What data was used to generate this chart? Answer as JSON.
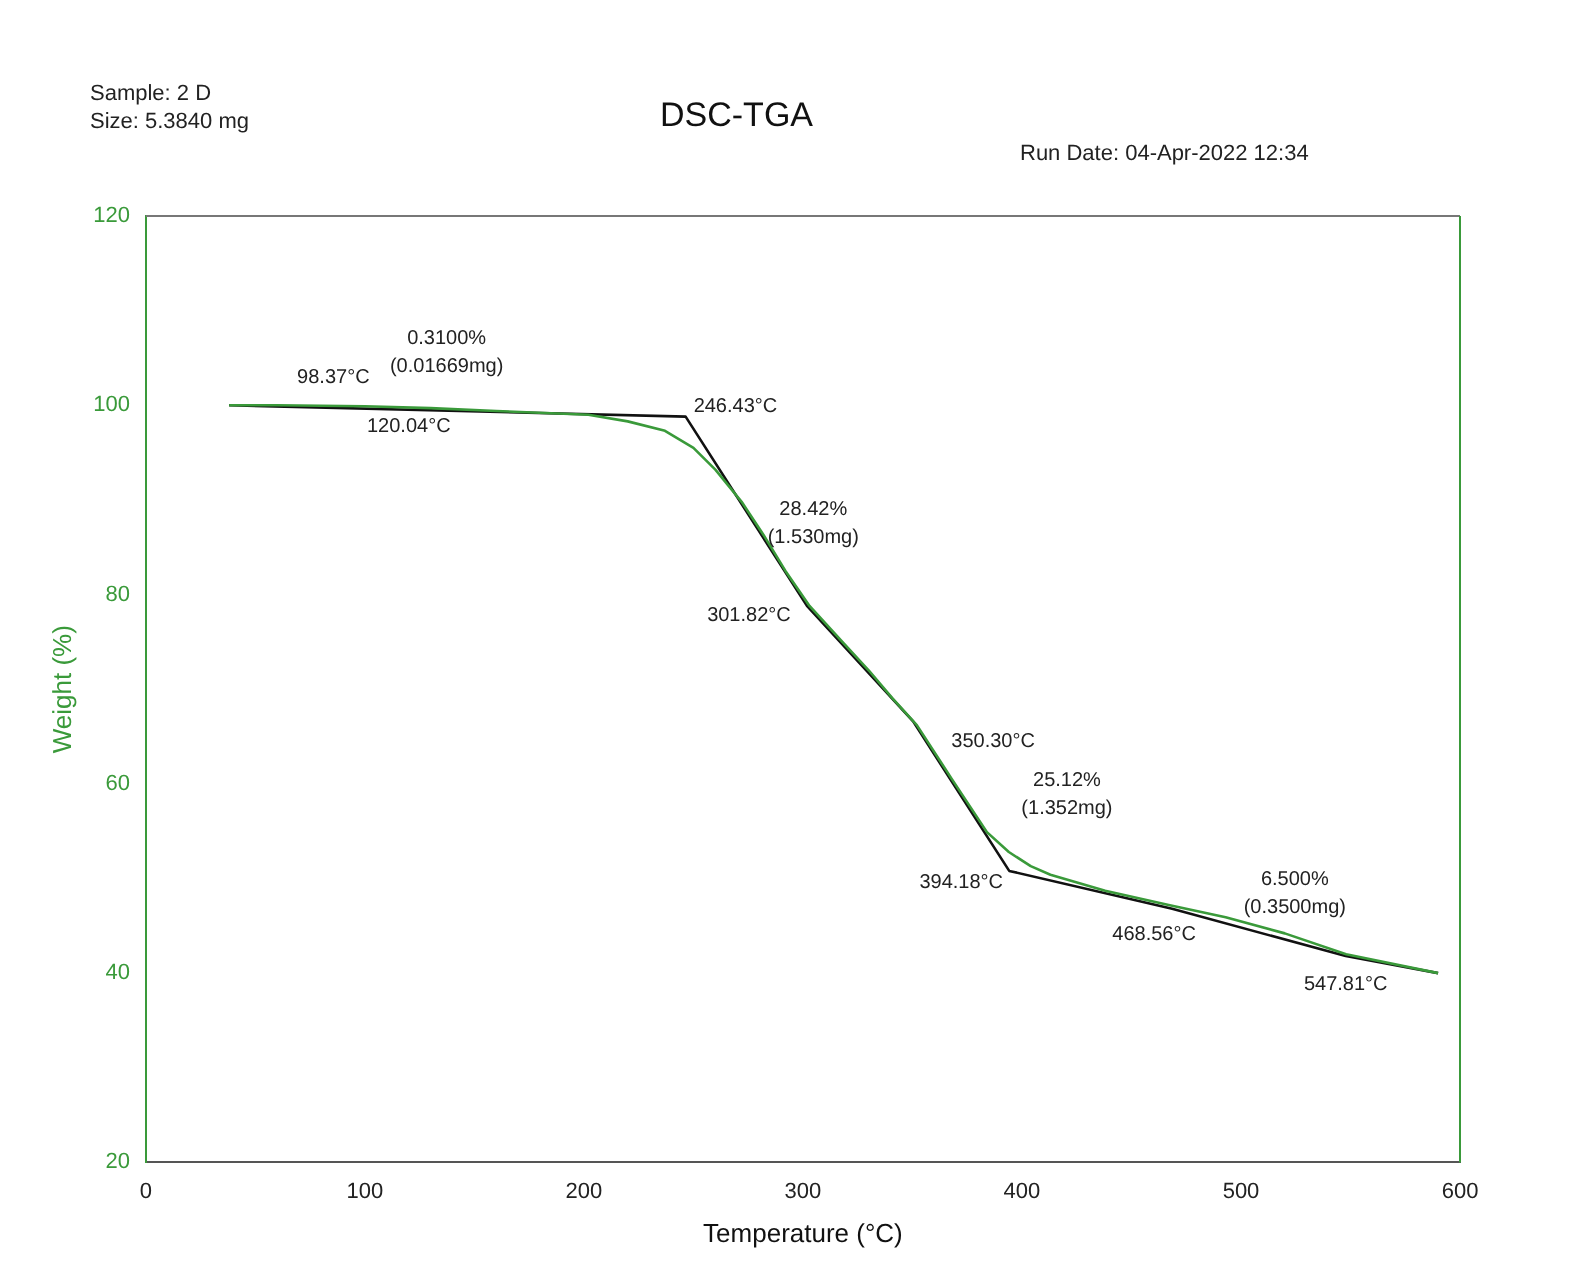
{
  "chart_data": {
    "type": "line",
    "title": "DSC-TGA",
    "xlabel": "Temperature (°C)",
    "ylabel": "Weight (%)",
    "xlim": [
      0,
      600
    ],
    "xticks": [
      0,
      100,
      200,
      300,
      400,
      500,
      600
    ],
    "ylim": [
      20,
      120
    ],
    "yticks": [
      20,
      40,
      60,
      80,
      100,
      120
    ],
    "grid": false,
    "legend": false,
    "marker": "none",
    "line_style": "solid",
    "series": [
      {
        "color": "#3a9a3a",
        "x": [
          38,
          60,
          100,
          130,
          160,
          202,
          220,
          237,
          250,
          260,
          272,
          282,
          292,
          303,
          318,
          330,
          341,
          352,
          368,
          384,
          394,
          404,
          413,
          438,
          467,
          493,
          520,
          548,
          590
        ],
        "values": [
          100,
          100,
          99.9,
          99.7,
          99.4,
          99.0,
          98.3,
          97.3,
          95.5,
          93.2,
          89.8,
          86.3,
          82.5,
          78.8,
          75.0,
          72,
          69,
          66.2,
          60.5,
          54.9,
          52.8,
          51.3,
          50.4,
          48.7,
          47.2,
          45.9,
          44.2,
          42,
          40
        ]
      },
      {
        "color": "#111111",
        "x": [
          38,
          246.43,
          301.82,
          350.3,
          394.18,
          468.56,
          547.81,
          590
        ],
        "values": [
          100,
          98.8,
          78.8,
          66.6,
          50.8,
          46.8,
          41.8,
          40
        ]
      }
    ],
    "annotations": [
      "Sample: 2 D",
      "Size:  5.3840 mg",
      "Run Date: 04-Apr-2022 12:34",
      {
        "text": "98.37°C",
        "x": 98.37,
        "y": 100
      },
      {
        "text": "120.04°C",
        "x": 120.04,
        "y": 99.9
      },
      {
        "text": "0.3100% (0.01669mg)",
        "x": 130,
        "y": 99.7
      },
      {
        "text": "246.43°C",
        "x": 246.43,
        "y": 98.8
      },
      {
        "text": "28.42% (1.530mg)",
        "x": 270,
        "y": 91.5
      },
      {
        "text": "301.82°C",
        "x": 301.82,
        "y": 78.8
      },
      {
        "text": "350.30°C",
        "x": 350.3,
        "y": 66.2
      },
      {
        "text": "25.12% (1.352mg)",
        "x": 384,
        "y": 54.9
      },
      {
        "text": "394.18°C",
        "x": 394.18,
        "y": 50.8
      },
      {
        "text": "468.56°C",
        "x": 468.56,
        "y": 46.8
      },
      {
        "text": "6.500% (0.3500mg)",
        "x": 520,
        "y": 44.2
      },
      {
        "text": "547.81°C",
        "x": 547.81,
        "y": 41.8
      }
    ]
  }
}
